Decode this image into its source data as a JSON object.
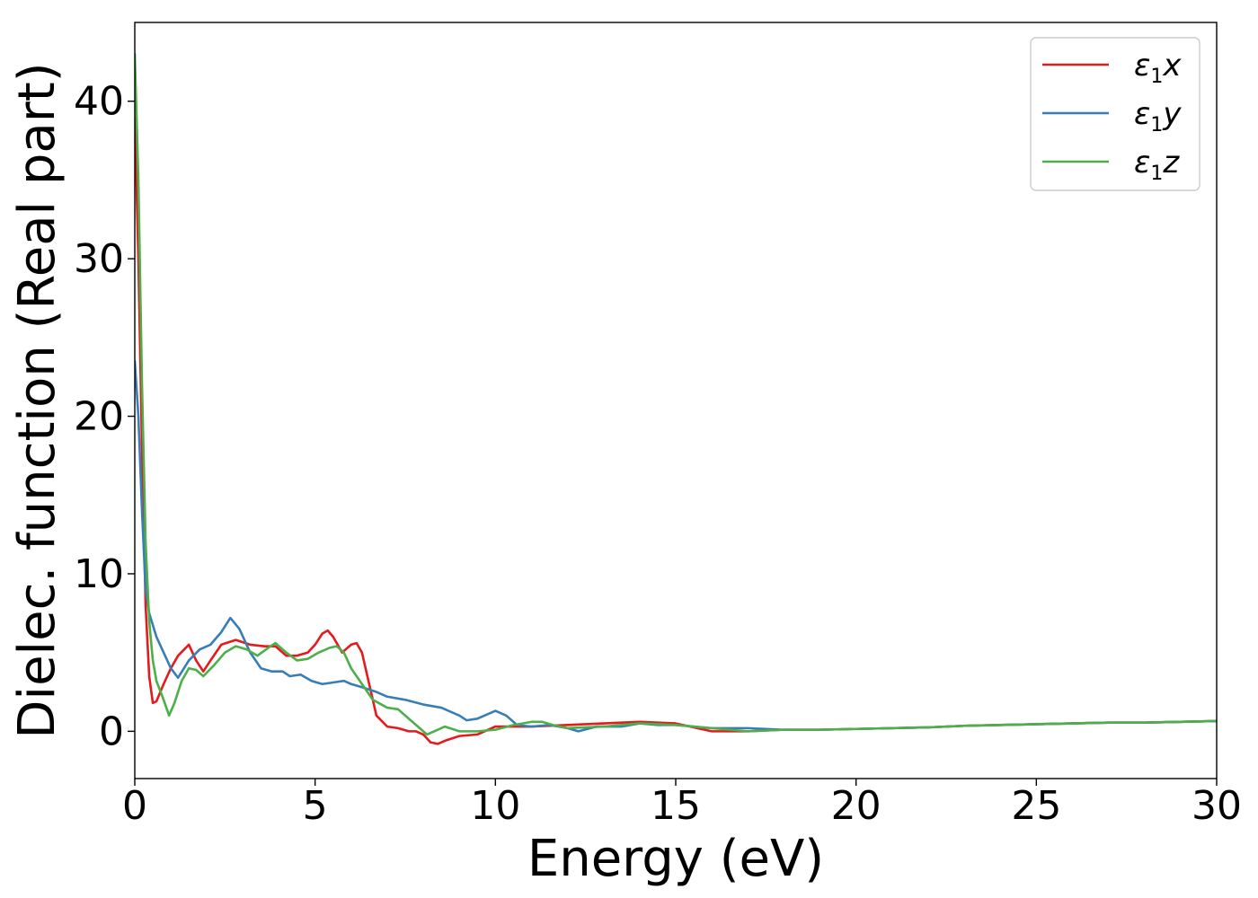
{
  "chart_data": {
    "type": "line",
    "xlabel": "Energy (eV)",
    "ylabel": "Dielec. function (Real part)",
    "xlim": [
      0,
      30
    ],
    "ylim": [
      -3,
      45
    ],
    "xticks": [
      0,
      5,
      10,
      15,
      20,
      25,
      30
    ],
    "yticks": [
      0,
      10,
      20,
      30,
      40
    ],
    "grid": false,
    "legend_position": "top-right",
    "series": [
      {
        "name": "ε1x",
        "color": "#e41a1c",
        "legend_main": "ε",
        "legend_sub": "1",
        "legend_var": "x",
        "x": [
          0,
          0.1,
          0.2,
          0.3,
          0.4,
          0.5,
          0.6,
          0.8,
          1.0,
          1.2,
          1.5,
          1.7,
          1.9,
          2.1,
          2.4,
          2.8,
          3.2,
          3.6,
          3.9,
          4.2,
          4.5,
          4.8,
          5.0,
          5.2,
          5.35,
          5.5,
          5.75,
          6.0,
          6.15,
          6.3,
          6.5,
          6.7,
          7.0,
          7.3,
          7.6,
          7.8,
          8.0,
          8.2,
          8.4,
          8.6,
          9.0,
          9.5,
          10.0,
          11.0,
          12.0,
          13.0,
          14.0,
          15.0,
          16.0,
          17.0,
          18.0,
          19.0,
          20.0,
          21.0,
          22.0,
          23.0,
          24.0,
          25.0,
          26.0,
          27.0,
          28.0,
          29.0,
          30.0
        ],
        "y": [
          39,
          30,
          18,
          8,
          3.5,
          1.8,
          1.9,
          3.0,
          4.0,
          4.8,
          5.5,
          4.5,
          3.8,
          4.5,
          5.5,
          5.8,
          5.5,
          5.4,
          5.4,
          4.8,
          4.8,
          5.0,
          5.5,
          6.2,
          6.4,
          6.0,
          5.0,
          5.5,
          5.6,
          5.0,
          3.0,
          1.0,
          0.3,
          0.2,
          0.0,
          0.0,
          -0.2,
          -0.7,
          -0.8,
          -0.6,
          -0.3,
          -0.2,
          0.3,
          0.3,
          0.4,
          0.5,
          0.6,
          0.5,
          0.0,
          0.0,
          0.1,
          0.1,
          0.15,
          0.2,
          0.25,
          0.35,
          0.4,
          0.45,
          0.5,
          0.55,
          0.55,
          0.6,
          0.65
        ]
      },
      {
        "name": "ε1y",
        "color": "#377eb8",
        "legend_main": "ε",
        "legend_sub": "1",
        "legend_var": "y",
        "x": [
          0,
          0.1,
          0.2,
          0.3,
          0.4,
          0.6,
          0.8,
          1.0,
          1.2,
          1.5,
          1.8,
          2.1,
          2.4,
          2.65,
          2.9,
          3.2,
          3.5,
          3.8,
          4.1,
          4.3,
          4.6,
          4.9,
          5.2,
          5.5,
          5.8,
          6.0,
          6.3,
          6.7,
          7.0,
          7.5,
          8.0,
          8.5,
          9.0,
          9.2,
          9.5,
          10.0,
          10.3,
          10.6,
          11.0,
          11.5,
          12.0,
          12.3,
          12.8,
          13.5,
          14.0,
          14.5,
          15.0,
          16.0,
          17.0,
          18.0,
          19.0,
          20.0,
          21.0,
          22.0,
          23.0,
          24.0,
          25.0,
          26.0,
          27.0,
          28.0,
          29.0,
          30.0
        ],
        "y": [
          23.5,
          20,
          14,
          9,
          7.5,
          6.0,
          5.0,
          4.0,
          3.4,
          4.5,
          5.2,
          5.5,
          6.3,
          7.2,
          6.5,
          5.0,
          4.0,
          3.8,
          3.8,
          3.5,
          3.6,
          3.2,
          3.0,
          3.1,
          3.2,
          3.0,
          2.8,
          2.5,
          2.2,
          2.0,
          1.7,
          1.5,
          1.0,
          0.7,
          0.8,
          1.3,
          1.0,
          0.4,
          0.3,
          0.4,
          0.2,
          0.0,
          0.3,
          0.3,
          0.5,
          0.4,
          0.4,
          0.2,
          0.2,
          0.1,
          0.1,
          0.15,
          0.2,
          0.25,
          0.35,
          0.4,
          0.45,
          0.5,
          0.55,
          0.55,
          0.6,
          0.65
        ]
      },
      {
        "name": "ε1z",
        "color": "#4daf4a",
        "legend_main": "ε",
        "legend_sub": "1",
        "legend_var": "z",
        "x": [
          0,
          0.1,
          0.2,
          0.3,
          0.4,
          0.5,
          0.6,
          0.8,
          0.95,
          1.1,
          1.3,
          1.5,
          1.7,
          1.9,
          2.2,
          2.5,
          2.8,
          3.1,
          3.4,
          3.7,
          3.9,
          4.2,
          4.5,
          4.8,
          5.1,
          5.4,
          5.6,
          5.8,
          6.0,
          6.3,
          6.6,
          7.0,
          7.3,
          7.6,
          7.9,
          8.1,
          8.3,
          8.6,
          9.0,
          9.5,
          10.0,
          10.5,
          11.0,
          11.3,
          11.6,
          12.0,
          13.0,
          14.0,
          15.0,
          16.0,
          17.0,
          18.0,
          19.0,
          20.0,
          21.0,
          22.0,
          23.0,
          24.0,
          25.0,
          26.0,
          27.0,
          28.0,
          29.0,
          30.0
        ],
        "y": [
          43,
          35,
          22,
          12,
          7,
          4.5,
          3.2,
          2.0,
          1.0,
          1.8,
          3.2,
          4.0,
          3.9,
          3.5,
          4.2,
          5.0,
          5.4,
          5.2,
          4.8,
          5.3,
          5.6,
          5.0,
          4.5,
          4.6,
          5.0,
          5.3,
          5.4,
          5.0,
          4.0,
          3.0,
          2.0,
          1.5,
          1.4,
          0.8,
          0.2,
          -0.2,
          0.0,
          0.3,
          0.0,
          0.0,
          0.1,
          0.4,
          0.6,
          0.6,
          0.4,
          0.2,
          0.3,
          0.5,
          0.4,
          0.2,
          0.0,
          0.1,
          0.1,
          0.15,
          0.2,
          0.25,
          0.35,
          0.4,
          0.45,
          0.5,
          0.55,
          0.55,
          0.6,
          0.65
        ]
      }
    ]
  }
}
